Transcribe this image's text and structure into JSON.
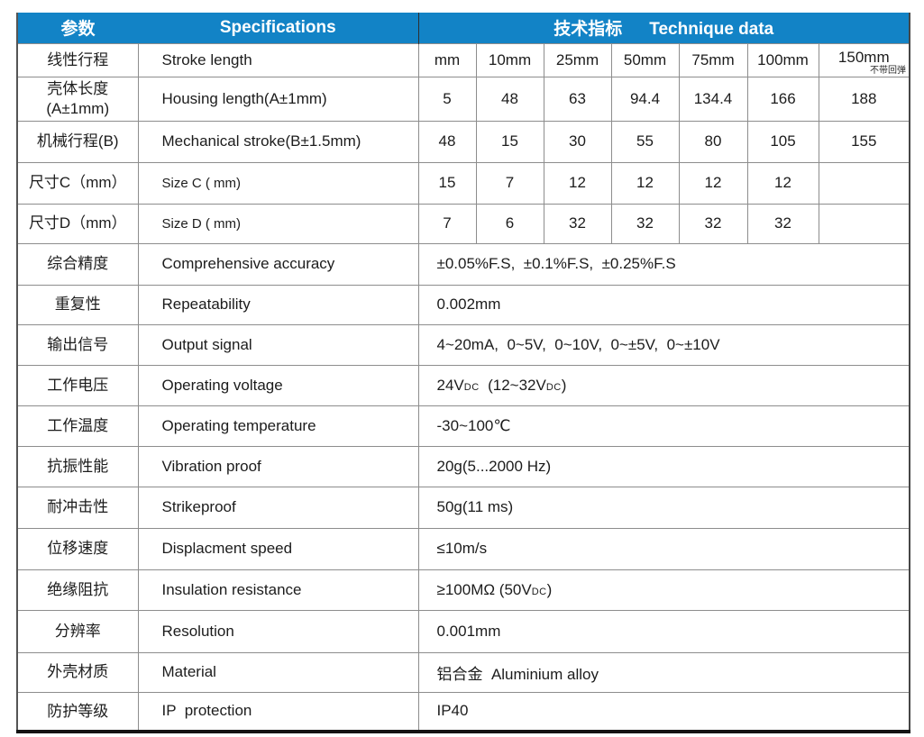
{
  "header": {
    "col_param": "参数",
    "col_spec": "Specifications",
    "tech_cn": "技术指标",
    "tech_en": "Technique data",
    "accent_color": "#1283C6"
  },
  "stroke_row": {
    "cn": "线性行程",
    "en": "Stroke length",
    "values": [
      "mm",
      "10mm",
      "25mm",
      "50mm",
      "75mm",
      "100mm",
      "150mm"
    ],
    "note": "不带回弹"
  },
  "grid_rows": [
    {
      "cn": "壳体长度\n(A±1mm)",
      "en": "Housing length(A±1mm)",
      "values": [
        "5",
        "48",
        "63",
        "94.4",
        "134.4",
        "166",
        "188"
      ]
    },
    {
      "cn": "机械行程(B)",
      "en": "Mechanical stroke(B±1.5mm)",
      "values": [
        "48",
        "15",
        "30",
        "55",
        "80",
        "105",
        "155"
      ]
    },
    {
      "cn": "尺寸C（mm）",
      "en": "Size C ( mm)",
      "values": [
        "15",
        "7",
        "12",
        "12",
        "12",
        "12",
        ""
      ]
    },
    {
      "cn": "尺寸D（mm）",
      "en": "Size D ( mm)",
      "values": [
        "7",
        "6",
        "32",
        "32",
        "32",
        "32",
        ""
      ]
    }
  ],
  "spec_rows": [
    {
      "cn": "综合精度",
      "en": "Comprehensive accuracy",
      "value": "±0.05%F.S,  ±0.1%F.S,  ±0.25%F.S"
    },
    {
      "cn": "重复性",
      "en": "Repeatability",
      "value": "0.002mm"
    },
    {
      "cn": "输出信号",
      "en": "Output signal",
      "value": "4~20mA,  0~5V,  0~10V,  0~±5V,  0~±10V"
    },
    {
      "cn": "工作电压",
      "en": "Operating voltage",
      "parts": {
        "p1": "24V",
        "dc1": "DC",
        "p2": "  (12~32V",
        "dc2": "DC",
        "p3": ")"
      }
    },
    {
      "cn": "工作温度",
      "en": "Operating temperature",
      "value": "-30~100℃"
    },
    {
      "cn": "抗振性能",
      "en": "Vibration proof",
      "value": "20g(5...2000 Hz)"
    },
    {
      "cn": "耐冲击性",
      "en": "Strikeproof",
      "value": "50g(11 ms)"
    },
    {
      "cn": "位移速度",
      "en": "Displacment speed",
      "value": "≤10m/s"
    },
    {
      "cn": "绝缘阻抗",
      "en": "Insulation resistance",
      "parts": {
        "p1": "≥100MΩ (50V",
        "dc1": "DC",
        "p2": ")"
      }
    },
    {
      "cn": "分辨率",
      "en": "Resolution",
      "value": "0.001mm"
    },
    {
      "cn": "外壳材质",
      "en": "Material",
      "value": "铝合金  Aluminium alloy"
    },
    {
      "cn": "防护等级",
      "en": "IP  protection",
      "value": "IP40"
    }
  ]
}
